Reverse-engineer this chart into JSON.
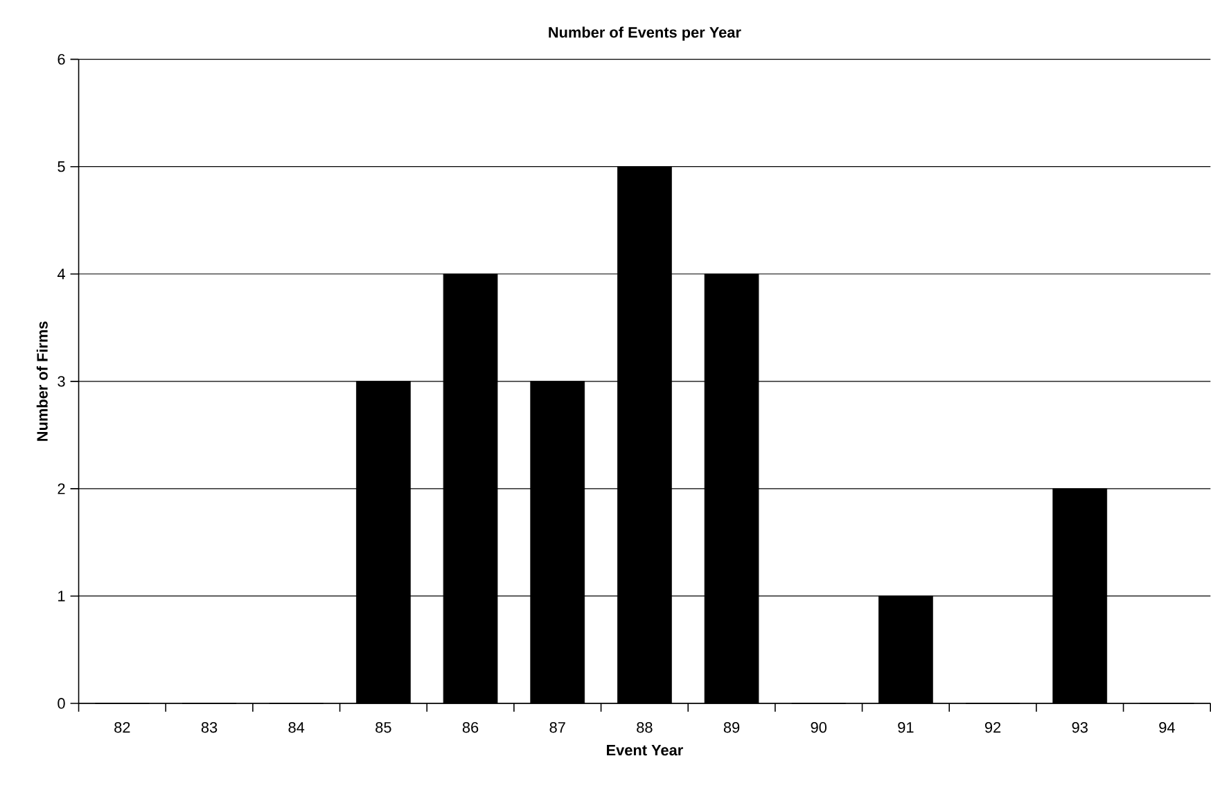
{
  "chart_data": {
    "type": "bar",
    "title": "Number of Events per Year",
    "xlabel": "Event Year",
    "ylabel": "Number of Firms",
    "categories": [
      "82",
      "83",
      "84",
      "85",
      "86",
      "87",
      "88",
      "89",
      "90",
      "91",
      "92",
      "93",
      "94"
    ],
    "values": [
      0,
      0,
      0,
      3,
      4,
      3,
      5,
      4,
      0,
      1,
      0,
      2,
      0
    ],
    "color": "#000000",
    "ylim": [
      0,
      6
    ],
    "yticks": [
      0,
      1,
      2,
      3,
      4,
      5,
      6
    ],
    "grid": "y"
  }
}
